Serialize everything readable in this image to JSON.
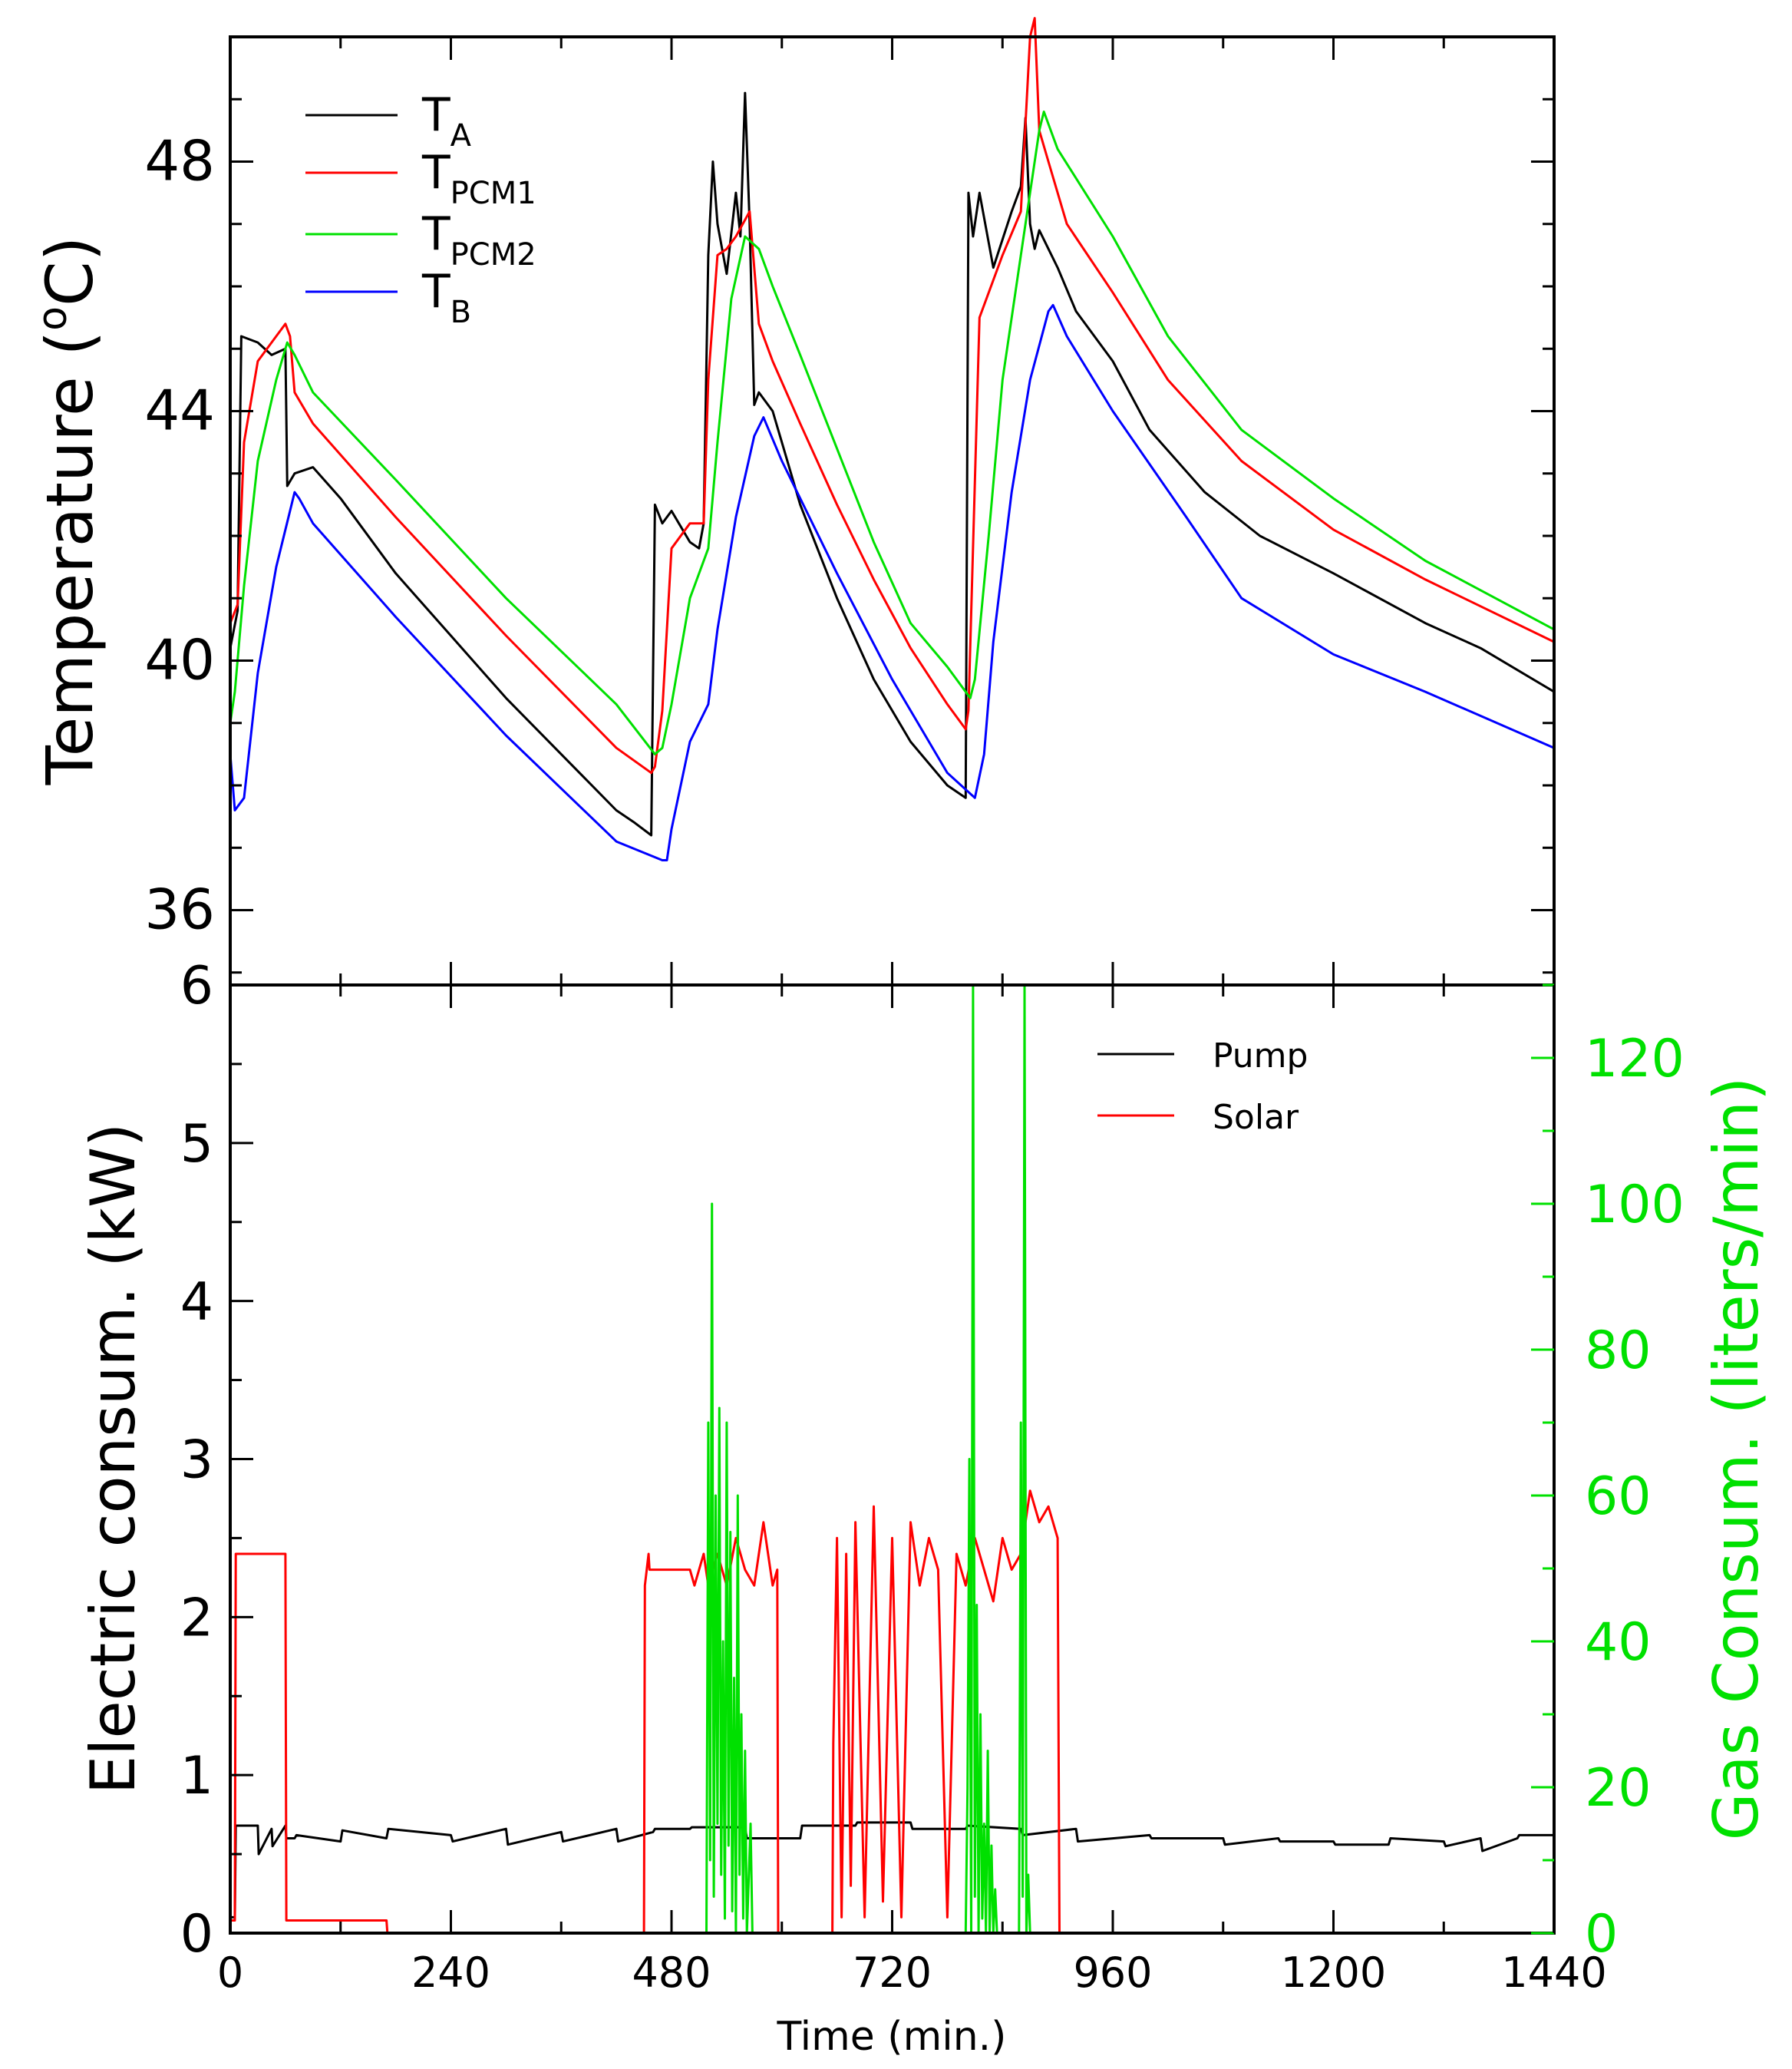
{
  "chart_data": [
    {
      "type": "line",
      "xlim": [
        0,
        1440
      ],
      "ylim": [
        34.8,
        50.0
      ],
      "yticks": [
        36,
        40,
        44,
        48
      ],
      "yticklabels": [
        "36",
        "40",
        "44",
        "48"
      ],
      "ylabel": "Temperature (°C)",
      "ylabel_parts": {
        "pre": "Temperature (",
        "deg": "o",
        "post": "C)"
      },
      "legend_position": "top-left",
      "series": [
        {
          "name": "T_A",
          "label_main": "T",
          "label_sub": "A",
          "color": "#000000",
          "x": [
            0,
            8,
            12,
            30,
            45,
            60,
            62,
            70,
            90,
            120,
            180,
            240,
            300,
            360,
            420,
            440,
            458,
            462,
            470,
            480,
            500,
            510,
            515,
            520,
            525,
            530,
            540,
            550,
            555,
            560,
            565,
            570,
            575,
            590,
            620,
            660,
            700,
            740,
            780,
            800,
            803,
            808,
            815,
            830,
            850,
            860,
            865,
            870,
            875,
            880,
            890,
            900,
            920,
            960,
            1000,
            1060,
            1120,
            1200,
            1300,
            1360,
            1440
          ],
          "y": [
            40.2,
            40.8,
            45.2,
            45.1,
            44.9,
            45.0,
            42.8,
            43.0,
            43.1,
            42.6,
            41.4,
            40.4,
            39.4,
            38.5,
            37.6,
            37.4,
            37.2,
            42.5,
            42.2,
            42.4,
            41.9,
            41.8,
            42.2,
            46.5,
            48.0,
            47.0,
            46.2,
            47.5,
            46.8,
            49.1,
            47.0,
            44.1,
            44.3,
            44.0,
            42.5,
            41.0,
            39.7,
            38.7,
            38.0,
            37.8,
            47.5,
            46.8,
            47.5,
            46.3,
            47.2,
            47.6,
            48.7,
            47.0,
            46.6,
            46.9,
            46.6,
            46.3,
            45.6,
            44.8,
            43.7,
            42.7,
            42.0,
            41.4,
            40.6,
            40.2,
            39.5
          ]
        },
        {
          "name": "T_PCM1",
          "label_main": "T",
          "label_sub": "PCM1",
          "color": "#ff0000",
          "x": [
            0,
            8,
            15,
            30,
            50,
            60,
            65,
            70,
            90,
            180,
            300,
            420,
            458,
            462,
            470,
            480,
            500,
            515,
            520,
            530,
            540,
            550,
            565,
            575,
            590,
            620,
            660,
            700,
            740,
            780,
            800,
            803,
            815,
            840,
            860,
            870,
            875,
            880,
            890,
            910,
            960,
            1020,
            1100,
            1200,
            1300,
            1440
          ],
          "y": [
            40.6,
            40.9,
            43.5,
            44.8,
            45.2,
            45.4,
            45.2,
            44.3,
            43.8,
            42.3,
            40.4,
            38.6,
            38.2,
            38.3,
            39.2,
            41.8,
            42.2,
            42.2,
            44.5,
            46.5,
            46.6,
            46.8,
            47.2,
            45.4,
            44.8,
            43.8,
            42.5,
            41.3,
            40.2,
            39.3,
            38.9,
            39.2,
            45.5,
            46.5,
            47.2,
            50.0,
            50.3,
            48.5,
            48.0,
            47.0,
            45.9,
            44.5,
            43.2,
            42.1,
            41.3,
            40.3
          ]
        },
        {
          "name": "T_PCM2",
          "label_main": "T",
          "label_sub": "PCM2",
          "color": "#00e000",
          "x": [
            0,
            5,
            15,
            30,
            50,
            62,
            70,
            90,
            180,
            300,
            420,
            462,
            470,
            480,
            500,
            520,
            530,
            545,
            560,
            575,
            590,
            620,
            660,
            700,
            740,
            780,
            805,
            810,
            825,
            840,
            860,
            880,
            885,
            900,
            960,
            1020,
            1100,
            1200,
            1300,
            1440
          ],
          "y": [
            39.0,
            39.5,
            41.2,
            43.2,
            44.5,
            45.1,
            44.9,
            44.3,
            42.9,
            41.0,
            39.3,
            38.5,
            38.6,
            39.3,
            41.0,
            41.8,
            43.5,
            45.8,
            46.8,
            46.6,
            46.0,
            44.9,
            43.4,
            41.9,
            40.6,
            39.9,
            39.4,
            39.7,
            42.0,
            44.5,
            46.5,
            48.5,
            48.8,
            48.2,
            46.8,
            45.2,
            43.7,
            42.6,
            41.6,
            40.5
          ]
        },
        {
          "name": "T_B",
          "label_main": "T",
          "label_sub": "B",
          "color": "#0000ff",
          "x": [
            0,
            5,
            15,
            30,
            50,
            70,
            75,
            90,
            180,
            300,
            420,
            470,
            475,
            480,
            500,
            520,
            530,
            550,
            570,
            580,
            600,
            660,
            720,
            780,
            810,
            820,
            830,
            850,
            870,
            890,
            895,
            910,
            960,
            1040,
            1100,
            1200,
            1300,
            1440
          ],
          "y": [
            38.5,
            37.6,
            37.8,
            39.8,
            41.5,
            42.7,
            42.6,
            42.2,
            40.7,
            38.8,
            37.1,
            36.8,
            36.8,
            37.3,
            38.7,
            39.3,
            40.5,
            42.3,
            43.6,
            43.9,
            43.2,
            41.4,
            39.7,
            38.2,
            37.8,
            38.5,
            40.3,
            42.7,
            44.5,
            45.6,
            45.7,
            45.2,
            44.0,
            42.3,
            41.0,
            40.1,
            39.5,
            38.6
          ]
        }
      ]
    },
    {
      "type": "line",
      "xlim": [
        0,
        1440
      ],
      "xticks": [
        0,
        240,
        480,
        720,
        960,
        1200,
        1440
      ],
      "xticklabels": [
        "0",
        "240",
        "480",
        "720",
        "960",
        "1200",
        "1440"
      ],
      "xlabel": "Time (min.)",
      "ylim": [
        0,
        6.0
      ],
      "yticks": [
        0,
        1,
        2,
        3,
        4,
        5,
        6
      ],
      "yticklabels": [
        "0",
        "1",
        "2",
        "3",
        "4",
        "5",
        "6"
      ],
      "ylabel": "Electric consum. (kW)",
      "y2lim": [
        0,
        130
      ],
      "y2ticks": [
        0,
        20,
        40,
        60,
        80,
        100,
        120
      ],
      "y2ticklabels": [
        "0",
        "20",
        "40",
        "60",
        "80",
        "100",
        "120"
      ],
      "y2label": "Gas Consum. (liters/min)",
      "y2color": "#00e000",
      "legend_position": "top-right",
      "series": [
        {
          "name": "Pump",
          "color": "#000000",
          "x": [
            0,
            5,
            6,
            30,
            31,
            45,
            46,
            60,
            61,
            70,
            72,
            120,
            122,
            170,
            172,
            240,
            242,
            300,
            302,
            360,
            362,
            420,
            422,
            460,
            462,
            500,
            502,
            560,
            562,
            620,
            622,
            680,
            682,
            740,
            742,
            800,
            802,
            860,
            862,
            920,
            922,
            1000,
            1002,
            1080,
            1082,
            1140,
            1142,
            1200,
            1202,
            1260,
            1262,
            1320,
            1322,
            1360,
            1362,
            1400,
            1402,
            1440
          ],
          "y": [
            0.1,
            0.1,
            0.68,
            0.68,
            0.5,
            0.66,
            0.55,
            0.68,
            0.6,
            0.6,
            0.62,
            0.58,
            0.65,
            0.6,
            0.66,
            0.62,
            0.58,
            0.66,
            0.56,
            0.64,
            0.58,
            0.66,
            0.58,
            0.64,
            0.66,
            0.66,
            0.67,
            0.67,
            0.6,
            0.6,
            0.68,
            0.68,
            0.7,
            0.7,
            0.66,
            0.66,
            0.68,
            0.66,
            0.62,
            0.66,
            0.58,
            0.62,
            0.6,
            0.6,
            0.56,
            0.6,
            0.58,
            0.58,
            0.56,
            0.56,
            0.6,
            0.58,
            0.55,
            0.6,
            0.52,
            0.6,
            0.62,
            0.62
          ]
        },
        {
          "name": "Solar",
          "color": "#ff0000",
          "x": [
            0,
            5,
            6,
            60,
            61,
            170,
            171,
            450,
            451,
            455,
            456,
            500,
            505,
            515,
            520,
            530,
            540,
            550,
            560,
            570,
            580,
            590,
            595,
            596,
            655,
            656,
            660,
            665,
            670,
            675,
            680,
            690,
            700,
            710,
            720,
            730,
            740,
            750,
            760,
            770,
            780,
            790,
            800,
            810,
            820,
            830,
            840,
            850,
            860,
            870,
            880,
            890,
            900,
            902,
            1440
          ],
          "y": [
            0.08,
            0.08,
            2.4,
            2.4,
            0.08,
            0.08,
            0,
            0,
            2.2,
            2.4,
            2.3,
            2.3,
            2.2,
            2.4,
            2.2,
            2.4,
            2.2,
            2.5,
            2.3,
            2.2,
            2.6,
            2.2,
            2.3,
            0,
            0,
            1.2,
            2.5,
            0.1,
            2.4,
            0.3,
            2.6,
            0.1,
            2.7,
            0.2,
            2.5,
            0.1,
            2.6,
            2.2,
            2.5,
            2.3,
            0.1,
            2.4,
            2.2,
            2.5,
            2.3,
            2.1,
            2.5,
            2.3,
            2.4,
            2.8,
            2.6,
            2.7,
            2.5,
            0,
            0
          ]
        },
        {
          "name": "Gas",
          "color": "#00e000",
          "axis": "y2",
          "x": [
            0,
            518,
            520,
            522,
            524,
            526,
            528,
            530,
            532,
            534,
            536,
            538,
            540,
            542,
            544,
            546,
            548,
            550,
            552,
            554,
            556,
            558,
            560,
            562,
            566,
            568,
            570,
            800,
            802,
            804,
            806,
            808,
            810,
            812,
            814,
            816,
            818,
            820,
            822,
            824,
            826,
            828,
            830,
            832,
            834,
            836,
            858,
            860,
            862,
            864,
            866,
            868,
            870,
            1440
          ],
          "y": [
            0,
            0,
            70,
            10,
            100,
            5,
            60,
            15,
            72,
            8,
            40,
            2,
            70,
            12,
            55,
            3,
            35,
            0,
            60,
            8,
            30,
            2,
            25,
            0,
            15,
            0,
            0,
            0,
            20,
            65,
            0,
            130,
            5,
            45,
            0,
            30,
            2,
            15,
            0,
            25,
            0,
            12,
            0,
            6,
            0,
            0,
            0,
            70,
            5,
            130,
            0,
            8,
            0,
            0
          ]
        }
      ]
    }
  ]
}
